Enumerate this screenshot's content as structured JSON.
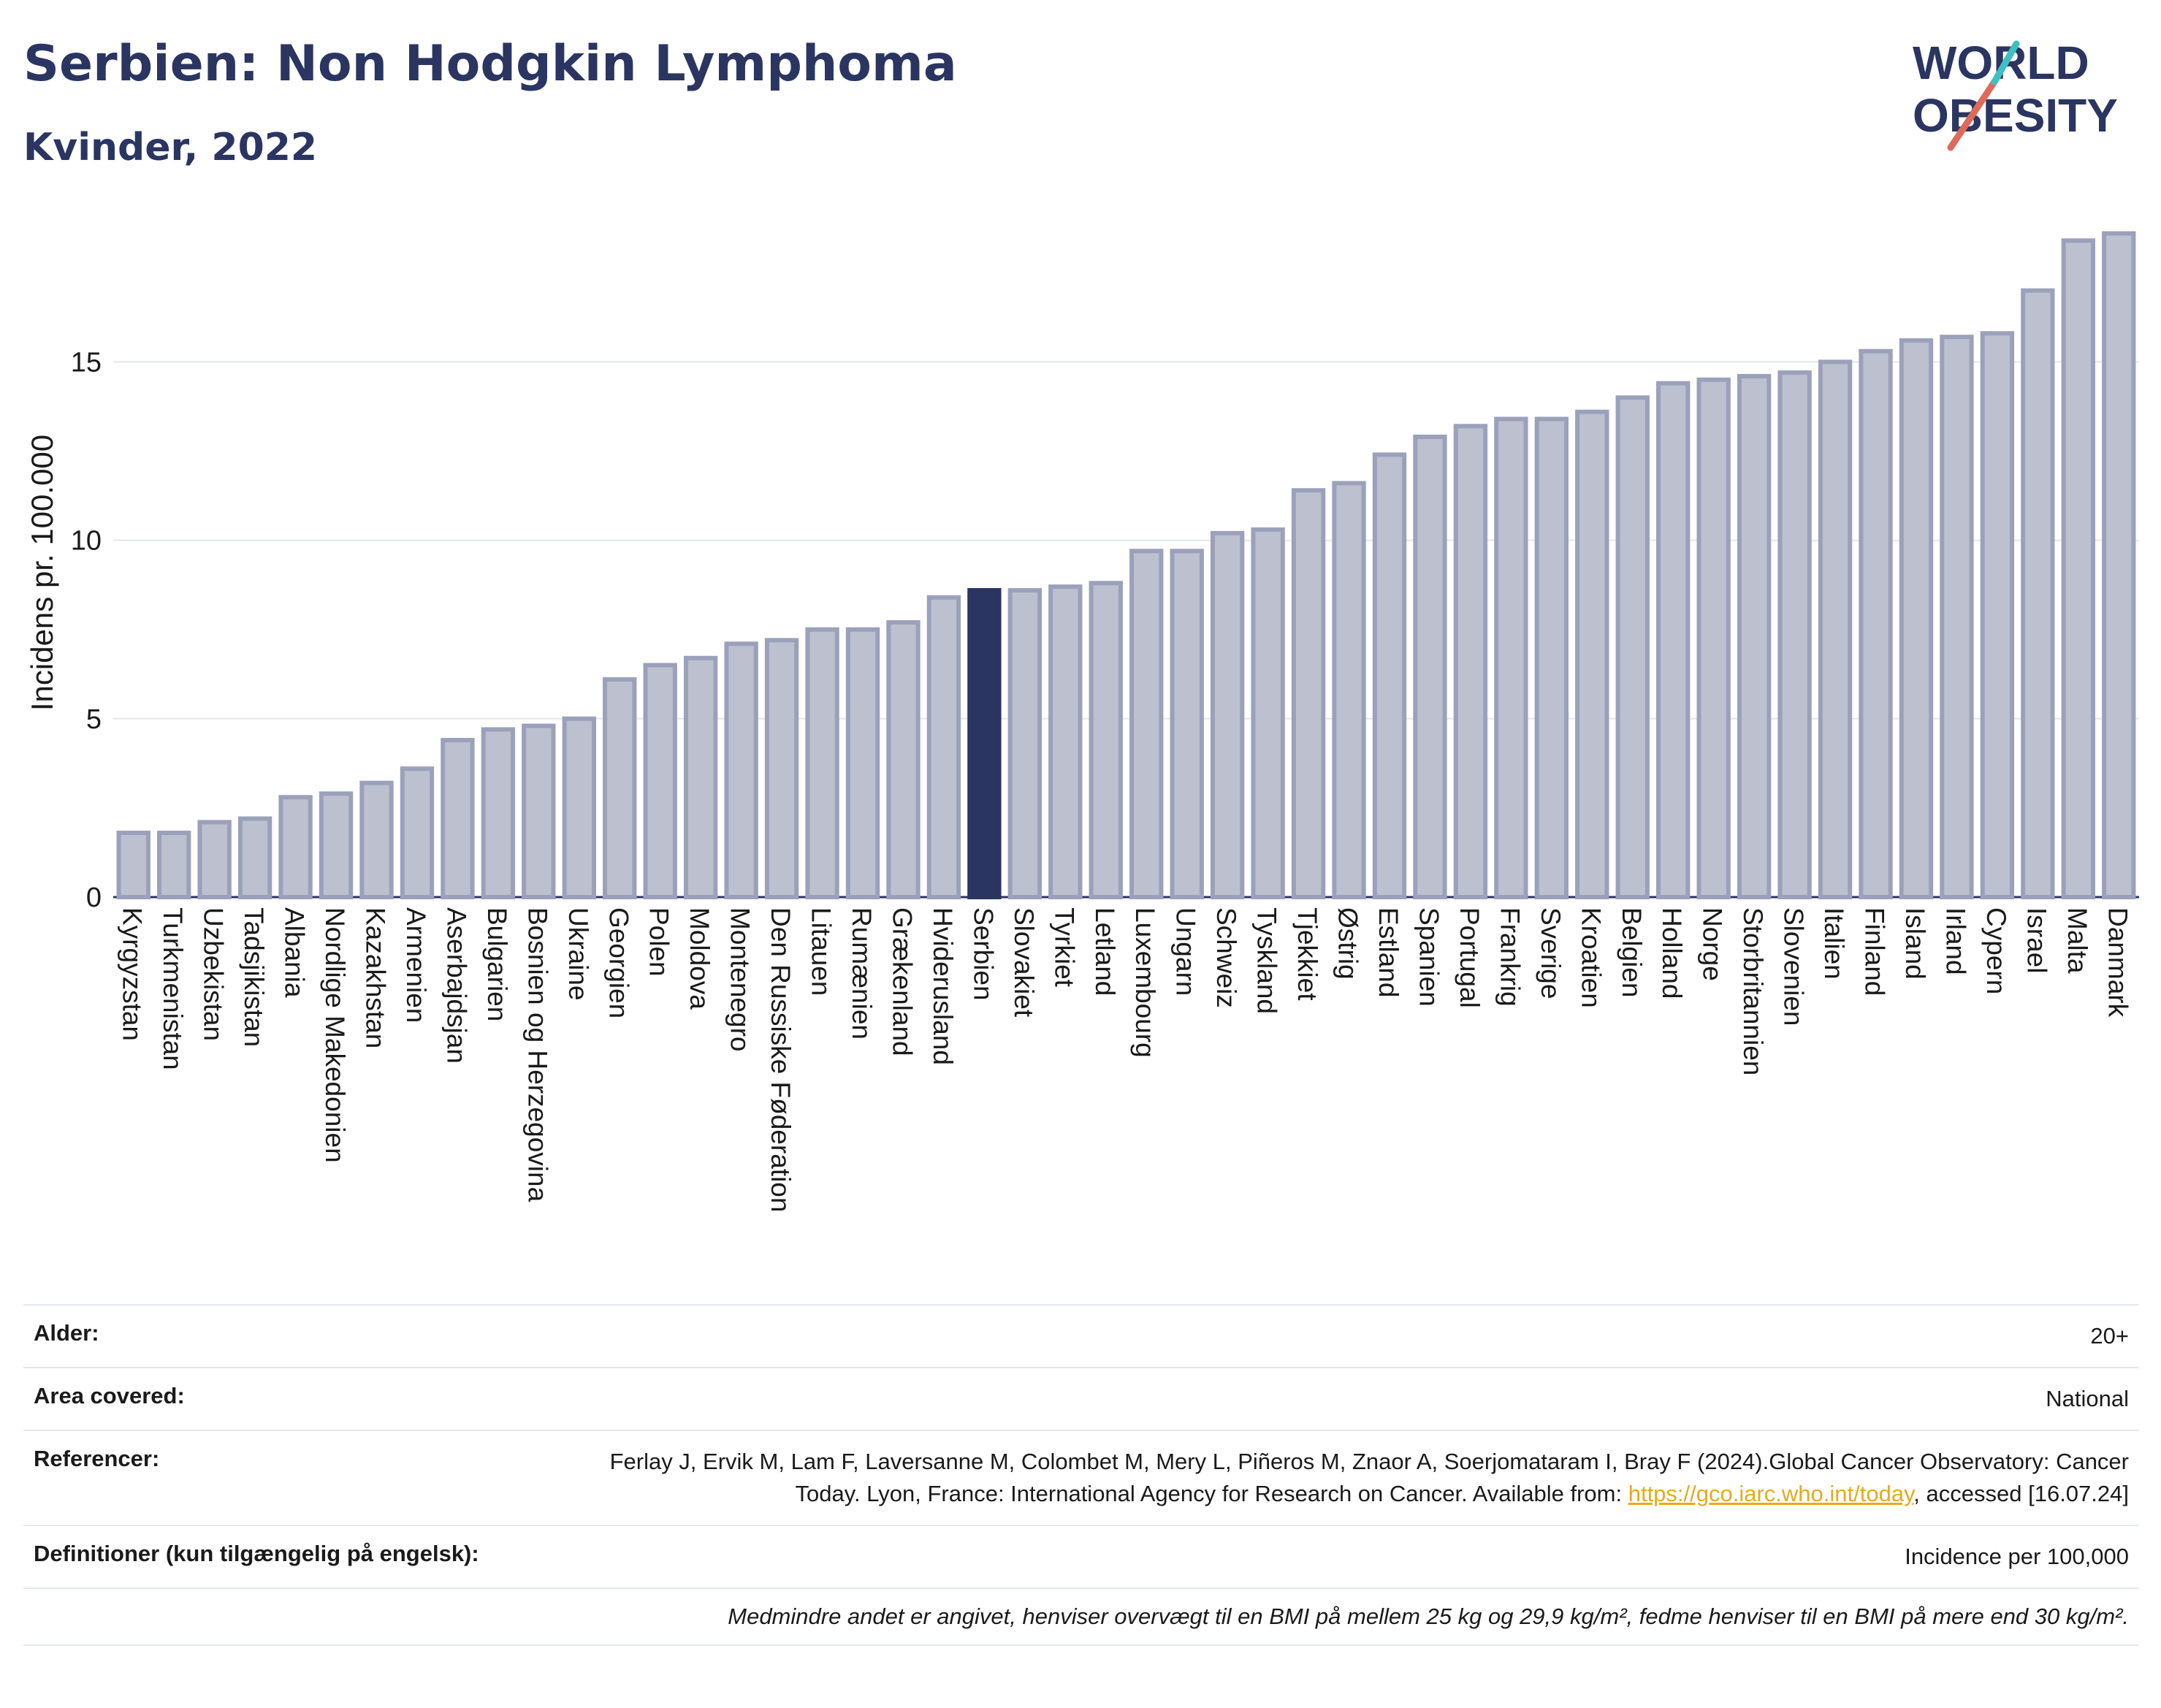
{
  "header": {
    "title": "Serbien: Non Hodgkin Lymphoma",
    "subtitle": "Kvinder, 2022"
  },
  "logo": {
    "line1": "WORLD",
    "line2": "OBESITY"
  },
  "chart_data": {
    "type": "bar",
    "ylabel": "Incidens pr. 100.000",
    "ylim": [
      0,
      19
    ],
    "yticks": [
      0,
      5,
      10,
      15
    ],
    "grid": true,
    "highlight": "Serbien",
    "highlight_color": "#2b3561",
    "bar_color": "#bcc0cf",
    "bar_edge_color": "#9ba1bb",
    "categories": [
      "Kyrgyzstan",
      "Turkmenistan",
      "Uzbekistan",
      "Tadsjikistan",
      "Albania",
      "Nordlige Makedonien",
      "Kazakhstan",
      "Armenien",
      "Aserbajdsjan",
      "Bulgarien",
      "Bosnien og Herzegovina",
      "Ukraine",
      "Georgien",
      "Polen",
      "Moldova",
      "Montenegro",
      "Den Russiske Føderation",
      "Litauen",
      "Rumænien",
      "Grækenland",
      "Hviderusland",
      "Serbien",
      "Slovakiet",
      "Tyrkiet",
      "Letland",
      "Luxembourg",
      "Ungarn",
      "Schweiz",
      "Tyskland",
      "Tjekkiet",
      "Østrig",
      "Estland",
      "Spanien",
      "Portugal",
      "Frankrig",
      "Sverige",
      "Kroatien",
      "Belgien",
      "Holland",
      "Norge",
      "Storbritannien",
      "Slovenien",
      "Italien",
      "Finland",
      "Island",
      "Irland",
      "Cypern",
      "Israel",
      "Malta",
      "Danmark"
    ],
    "values": [
      1.8,
      1.8,
      2.1,
      2.2,
      2.8,
      2.9,
      3.2,
      3.6,
      4.4,
      4.7,
      4.8,
      5.0,
      6.1,
      6.5,
      6.7,
      7.1,
      7.2,
      7.5,
      7.5,
      7.7,
      8.4,
      8.6,
      8.6,
      8.7,
      8.8,
      9.7,
      9.7,
      10.2,
      10.3,
      11.4,
      11.6,
      12.4,
      12.9,
      13.2,
      13.4,
      13.4,
      13.6,
      14.0,
      14.4,
      14.5,
      14.6,
      14.7,
      15.0,
      15.3,
      15.6,
      15.7,
      15.8,
      17.0,
      18.4,
      18.6
    ]
  },
  "meta": {
    "age_label": "Alder:",
    "age_value": "20+",
    "area_label": "Area covered:",
    "area_value": "National",
    "ref_label": "Referencer:",
    "ref_text": "Ferlay J, Ervik M, Lam F, Laversanne M, Colombet M, Mery L, Piñeros M, Znaor A, Soerjomataram I, Bray F (2024).Global Cancer Observatory: Cancer Today. Lyon, France: International Agency for Research on Cancer. Available from:",
    "ref_link": "https://gco.iarc.who.int/today",
    "ref_tail": ", accessed [16.07.24]",
    "def_label": "Definitioner (kun tilgængelig på engelsk):",
    "def_value": "Incidence per 100,000",
    "note": "Medmindre andet er angivet, henviser overvægt til en BMI på mellem 25 kg og 29,9 kg/m², fedme henviser til en BMI på mere end 30 kg/m²."
  }
}
